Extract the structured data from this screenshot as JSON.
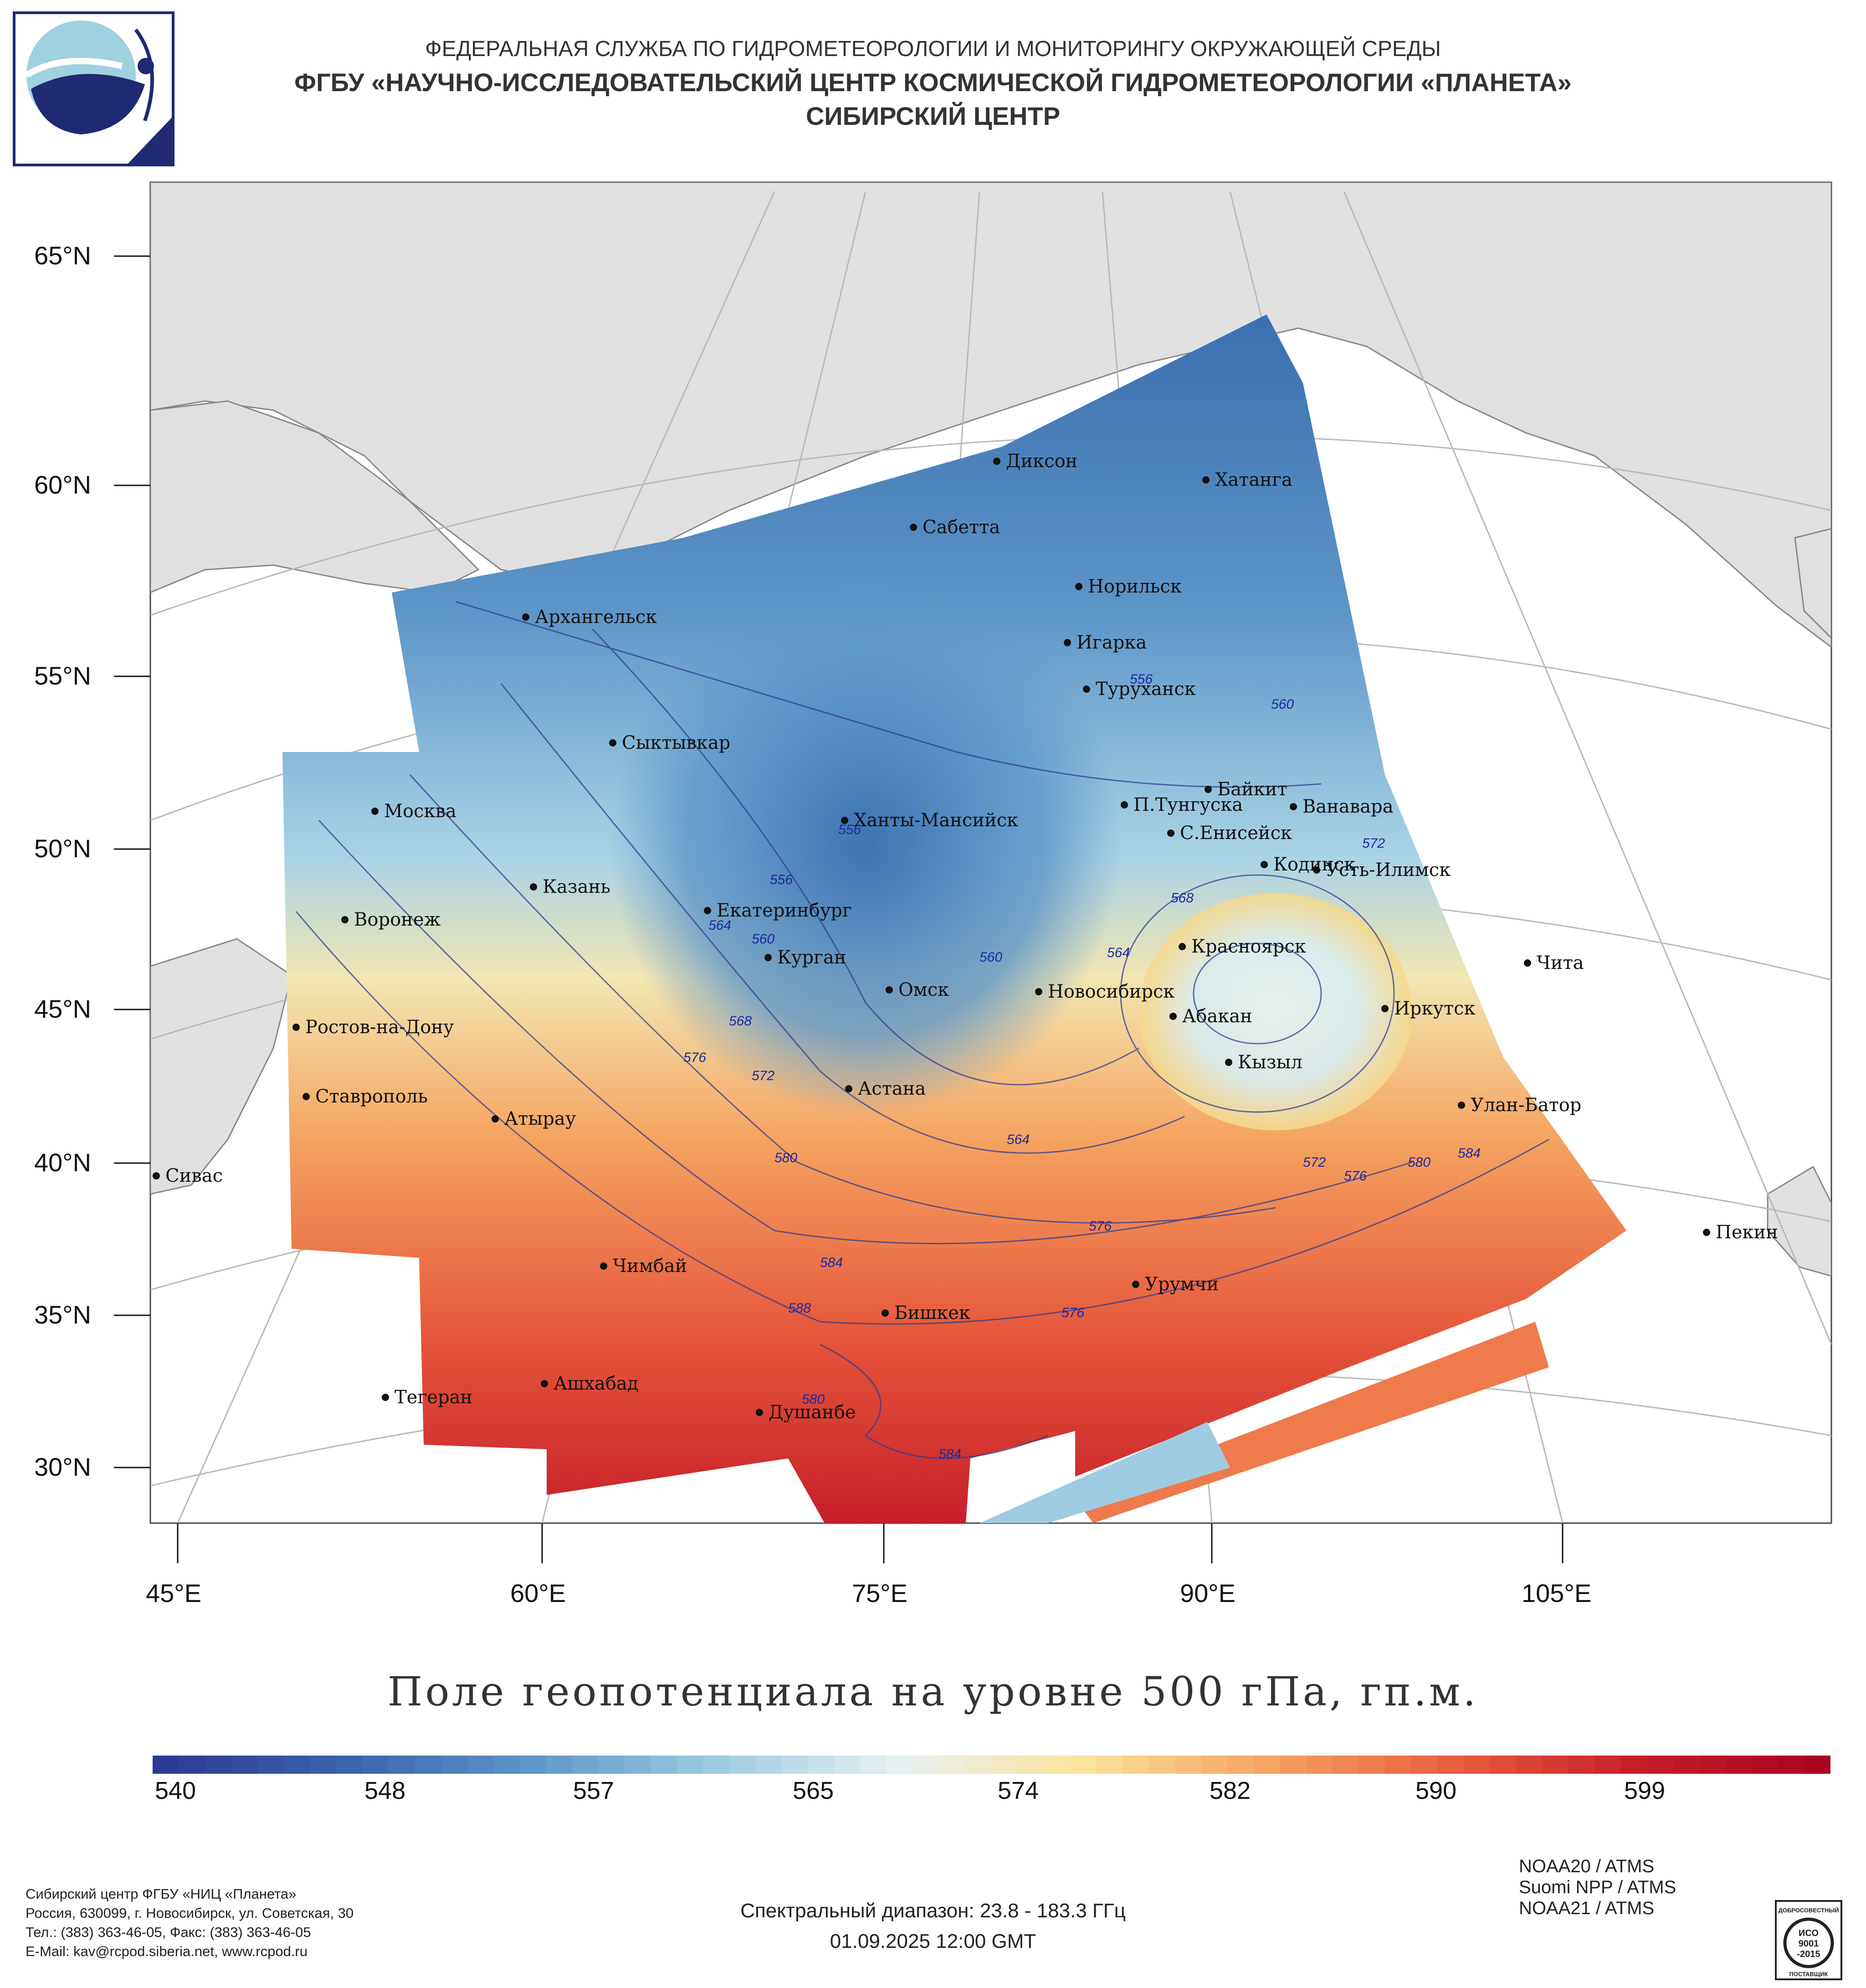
{
  "header": {
    "line1": "ФЕДЕРАЛЬНАЯ СЛУЖБА ПО ГИДРОМЕТЕОРОЛОГИИ И МОНИТОРИНГУ ОКРУЖАЮЩЕЙ СРЕДЫ",
    "line2": "ФГБУ «НАУЧНО-ИССЛЕДОВАТЕЛЬСКИЙ ЦЕНТР КОСМИЧЕСКОЙ ГИДРОМЕТЕОРОЛОГИИ «ПЛАНЕТА»",
    "line3": "СИБИРСКИЙ ЦЕНТР"
  },
  "map": {
    "lat_labels": [
      "65°N",
      "60°N",
      "55°N",
      "50°N",
      "45°N",
      "40°N",
      "35°N",
      "30°N"
    ],
    "lon_labels": [
      "45°E",
      "60°E",
      "75°E",
      "90°E",
      "105°E"
    ],
    "cities": [
      "Диксон",
      "Хатанга",
      "Сабетта",
      "Архангельск",
      "Норильск",
      "Игарка",
      "Туруханск",
      "Сыктывкар",
      "Байкит",
      "Москва",
      "П.Тунгуска",
      "Ванавара",
      "Ханты-Мансийск",
      "С.Енисейск",
      "Кодинск",
      "Усть-Илимск",
      "Казань",
      "Екатеринбург",
      "Воронеж",
      "Красноярск",
      "Курган",
      "Чита",
      "Омск",
      "Новосибирск",
      "Абакан",
      "Иркутск",
      "Ростов-на-Дону",
      "Кызыл",
      "Ставрополь",
      "Астана",
      "Улан-Батор",
      "Атырау",
      "Сивас",
      "Урумчи",
      "Чимбай",
      "Пекин",
      "Бишкек",
      "Тегеран",
      "Ашхабад",
      "Душанбе"
    ],
    "isolines": [
      "556",
      "560",
      "556",
      "556",
      "560",
      "564",
      "560",
      "564",
      "568",
      "572",
      "576",
      "568",
      "572",
      "580",
      "564",
      "576",
      "572",
      "576",
      "580",
      "584",
      "584",
      "588",
      "576",
      "580",
      "584"
    ],
    "colors": {
      "land": "#e0e0e0",
      "low": "#3b6fb1",
      "mid": "#e6f1f3",
      "high": "#c61f2a",
      "isoline": "#2b3a93"
    }
  },
  "chart_title": "Поле геопотенциала на уровне 500 гПа, гп.м.",
  "colorbar": {
    "ticks": [
      "540",
      "548",
      "557",
      "565",
      "574",
      "582",
      "590",
      "599"
    ],
    "stops": [
      "#2c3b97",
      "#3b64ad",
      "#5e96c8",
      "#9dcbe2",
      "#e7f1f2",
      "#fbe39b",
      "#f5a461",
      "#e8603e",
      "#c71f2a",
      "#a9051f"
    ]
  },
  "footer": {
    "org_line1": "Сибирский центр ФГБУ «НИЦ «Планета»",
    "org_line2": "Россия, 630099, г. Новосибирск, ул. Советская, 30",
    "org_line3": "Тел.: (383) 363-46-05, Факс: (383) 363-46-05",
    "org_line4": "E-Mail: kav@rcpod.siberia.net, www.rcpod.ru",
    "spectral": "Спектральный диапазон: 23.8 - 183.3 ГГц",
    "datetime": "01.09.2025 12:00 GMT",
    "sat1": "NOAA20 / ATMS",
    "sat2": "Suomi NPP / ATMS",
    "sat3": "NOAA21 / ATMS",
    "badge_top": "ДОБРОСОВЕСТНЫЙ",
    "badge_iso": "ИСО",
    "badge_num": "9001",
    "badge_year": "-2015",
    "badge_bottom": "ПОСТАВЩИК"
  }
}
